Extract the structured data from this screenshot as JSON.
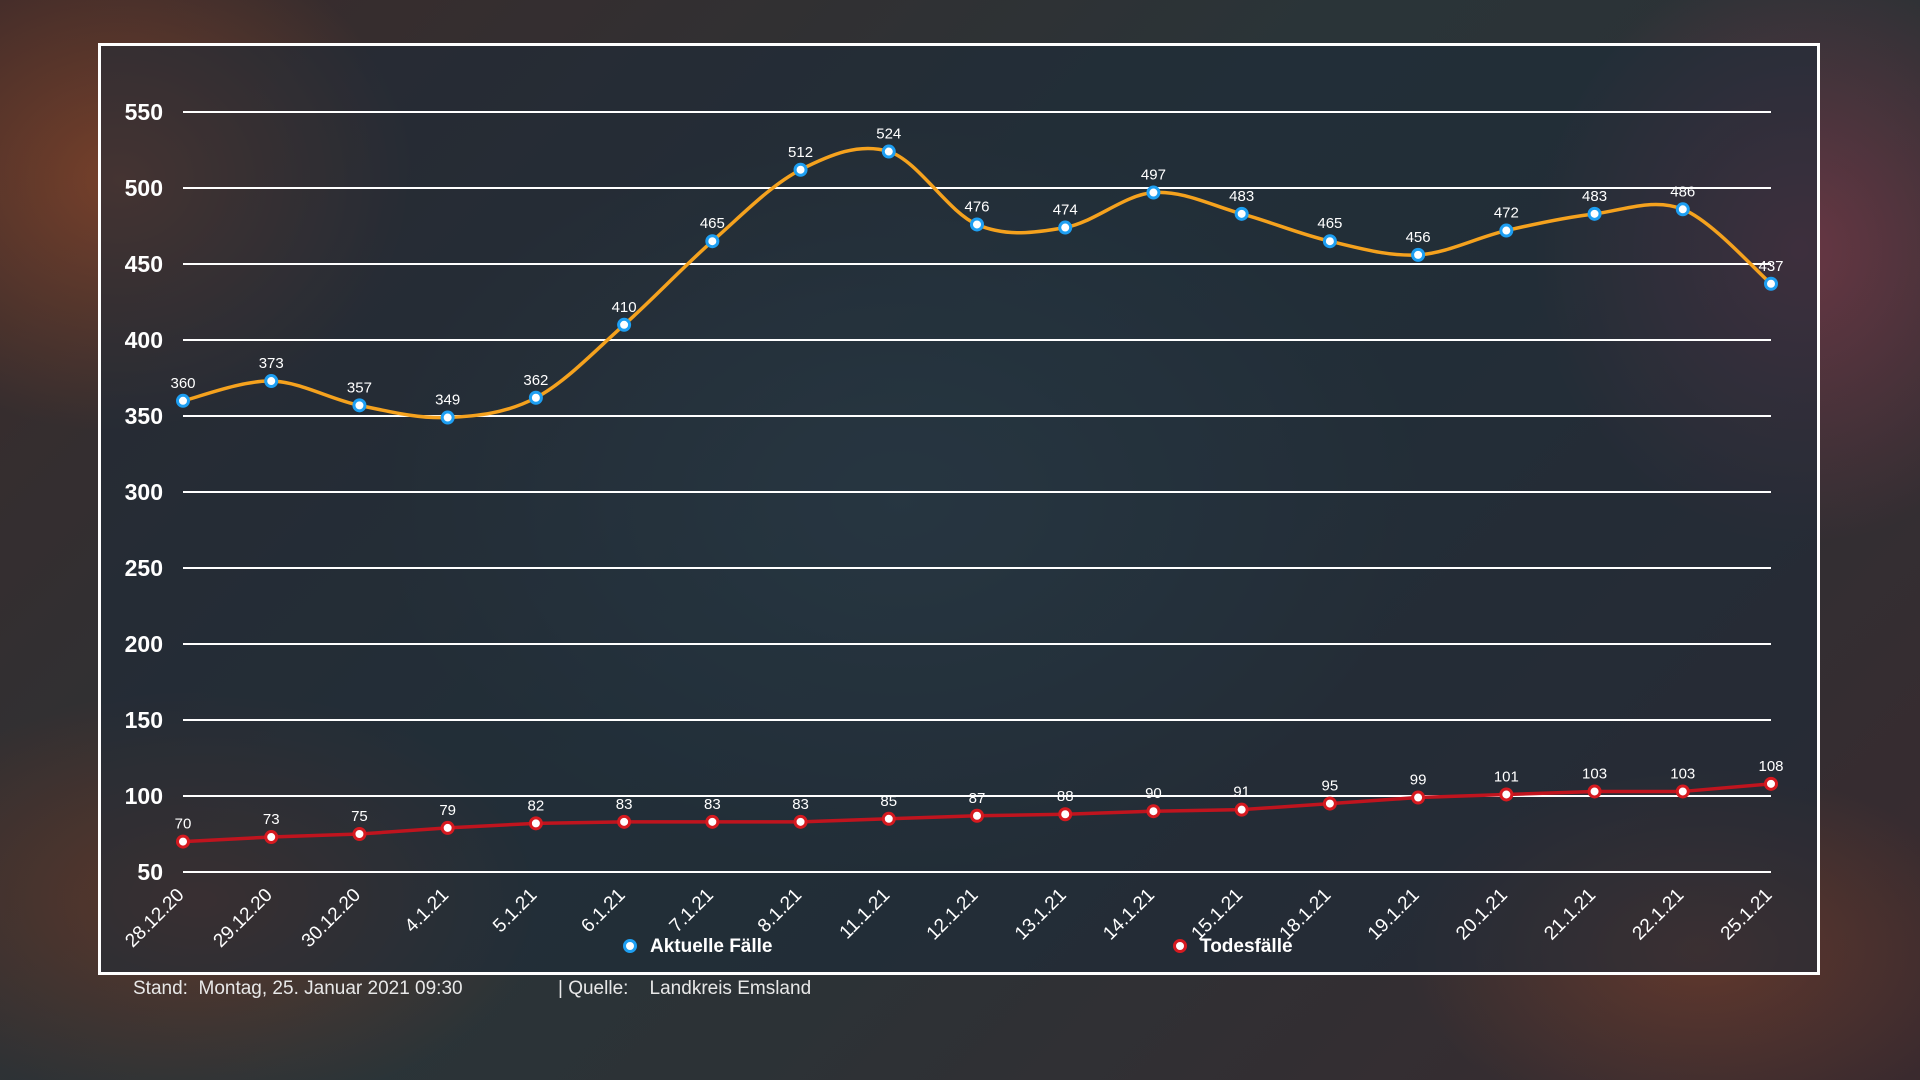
{
  "chart_data": {
    "type": "line",
    "title": "",
    "xlabel": "",
    "ylabel": "",
    "ylim": [
      50,
      550
    ],
    "yticks": [
      50,
      100,
      150,
      200,
      250,
      300,
      350,
      400,
      450,
      500,
      550
    ],
    "grid": true,
    "legend_position": "bottom",
    "categories": [
      "28.12.20",
      "29.12.20",
      "30.12.20",
      "4.1.21",
      "5.1.21",
      "6.1.21",
      "7.1.21",
      "8.1.21",
      "11.1.21",
      "12.1.21",
      "13.1.21",
      "14.1.21",
      "15.1.21",
      "18.1.21",
      "19.1.21",
      "20.1.21",
      "21.1.21",
      "22.1.21",
      "25.1.21"
    ],
    "series": [
      {
        "name": "Aktuelle Fälle",
        "color": "#f5a21e",
        "marker_color": "#1e9ff2",
        "values": [
          360,
          373,
          357,
          349,
          362,
          410,
          465,
          512,
          524,
          476,
          474,
          497,
          483,
          465,
          456,
          472,
          483,
          486,
          437
        ]
      },
      {
        "name": "Todesfälle",
        "color": "#c0141e",
        "marker_color": "#d61a20",
        "values": [
          70,
          73,
          75,
          79,
          82,
          83,
          83,
          83,
          85,
          87,
          88,
          90,
          91,
          95,
          99,
          101,
          103,
          103,
          108
        ]
      }
    ]
  },
  "footer": {
    "stand_label": "Stand:",
    "stand_value": "Montag, 25. Januar 2021 09:30",
    "source_label": "| Quelle:",
    "source_value": "Landkreis Emsland"
  }
}
